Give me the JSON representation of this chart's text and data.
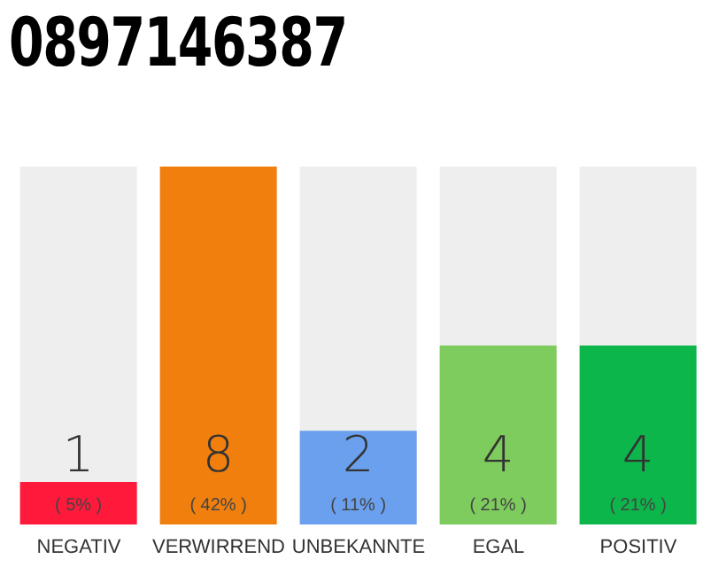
{
  "chart_data": {
    "type": "bar",
    "title": "0897146387",
    "categories": [
      "NEGATIV",
      "VERWIRREND",
      "UNBEKANNTE",
      "EGAL",
      "POSITIV"
    ],
    "values": [
      5,
      42,
      11,
      21,
      21
    ],
    "colors": [
      "#ff1a3c",
      "#f07f0e",
      "#6aa0ee",
      "#7ecb5e",
      "#0cb64a"
    ],
    "value_labels": [
      "( 5% )",
      "( 42% )",
      "( 11% )",
      "( 21% )",
      "( 21% )"
    ],
    "annotations": [
      "1",
      "8",
      "2",
      "4",
      "4"
    ],
    "legend": false
  }
}
